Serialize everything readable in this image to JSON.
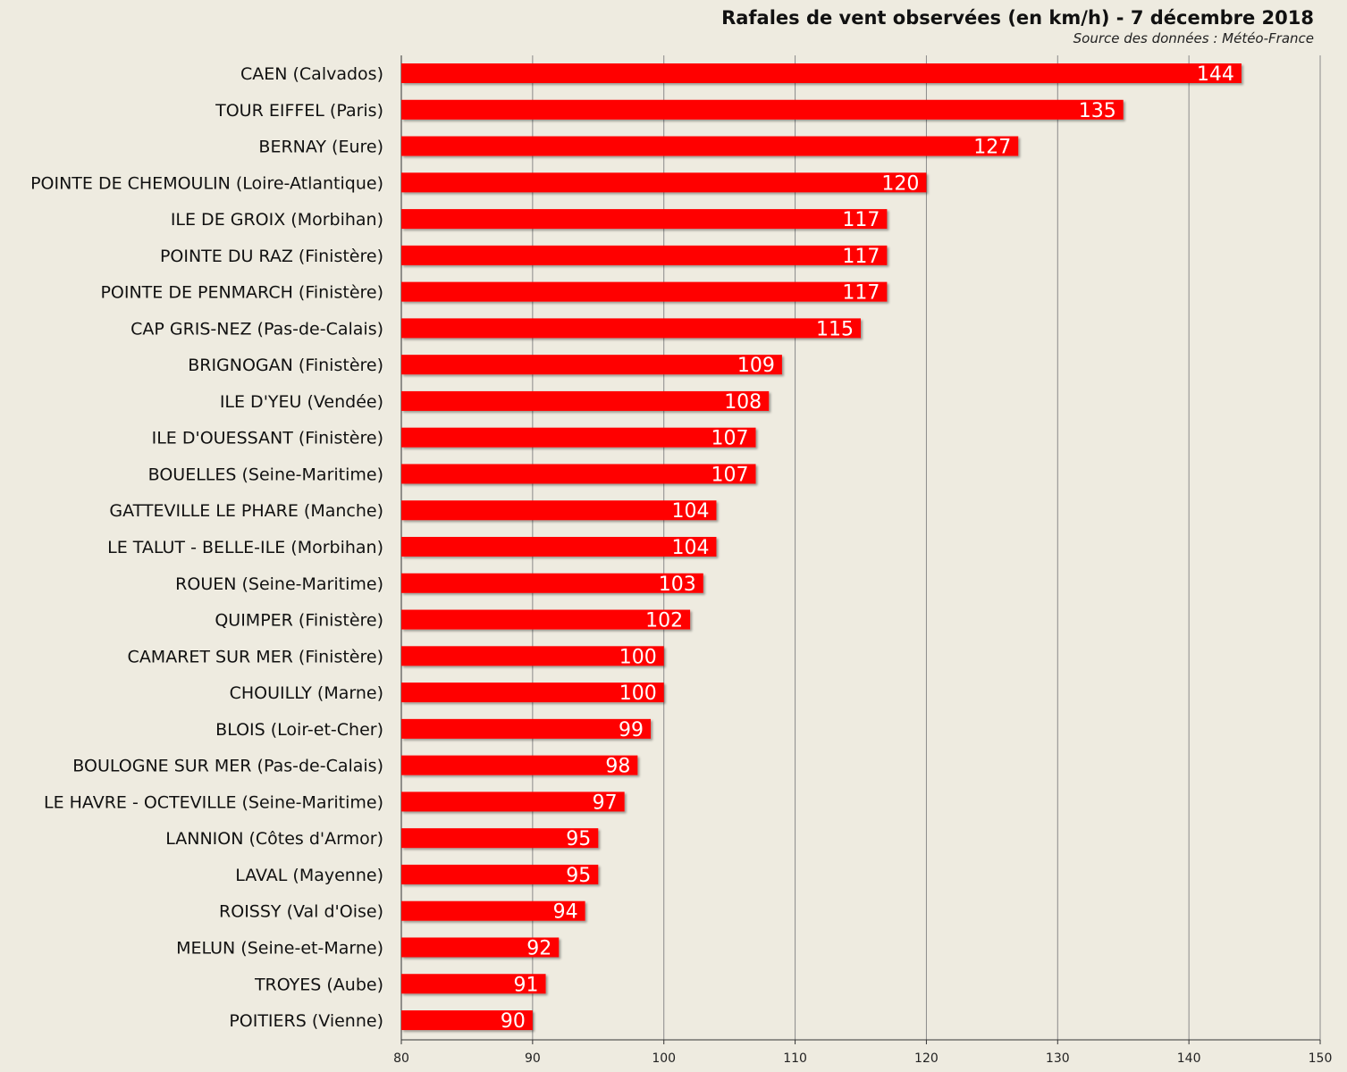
{
  "chart_data": {
    "type": "bar",
    "orientation": "horizontal",
    "title": "Rafales de vent observées (en km/h) - 7 décembre 2018",
    "subtitle": "Source des données : Météo-France",
    "xlabel": "",
    "ylabel": "",
    "xlim": [
      80,
      150
    ],
    "xticks": [
      80,
      90,
      100,
      110,
      120,
      130,
      140,
      150
    ],
    "grid": "vertical",
    "bar_color": "#ff0000",
    "value_label_color": "#ffffff",
    "categories": [
      "CAEN (Calvados)",
      "TOUR EIFFEL (Paris)",
      "BERNAY (Eure)",
      "POINTE DE CHEMOULIN (Loire-Atlantique)",
      "ILE DE GROIX (Morbihan)",
      "POINTE DU RAZ (Finistère)",
      "POINTE DE PENMARCH (Finistère)",
      "CAP GRIS-NEZ (Pas-de-Calais)",
      "BRIGNOGAN (Finistère)",
      "ILE D'YEU (Vendée)",
      "ILE D'OUESSANT (Finistère)",
      "BOUELLES (Seine-Maritime)",
      "GATTEVILLE LE PHARE (Manche)",
      "LE TALUT - BELLE-ILE (Morbihan)",
      "ROUEN (Seine-Maritime)",
      "QUIMPER (Finistère)",
      "CAMARET SUR MER (Finistère)",
      "CHOUILLY (Marne)",
      "BLOIS (Loir-et-Cher)",
      "BOULOGNE SUR MER (Pas-de-Calais)",
      "LE HAVRE - OCTEVILLE (Seine-Maritime)",
      "LANNION (Côtes d'Armor)",
      "LAVAL (Mayenne)",
      "ROISSY (Val d'Oise)",
      "MELUN (Seine-et-Marne)",
      "TROYES (Aube)",
      "POITIERS (Vienne)"
    ],
    "values": [
      144,
      135,
      127,
      120,
      117,
      117,
      117,
      115,
      109,
      108,
      107,
      107,
      104,
      104,
      103,
      102,
      100,
      100,
      99,
      98,
      97,
      95,
      95,
      94,
      92,
      91,
      90
    ]
  }
}
